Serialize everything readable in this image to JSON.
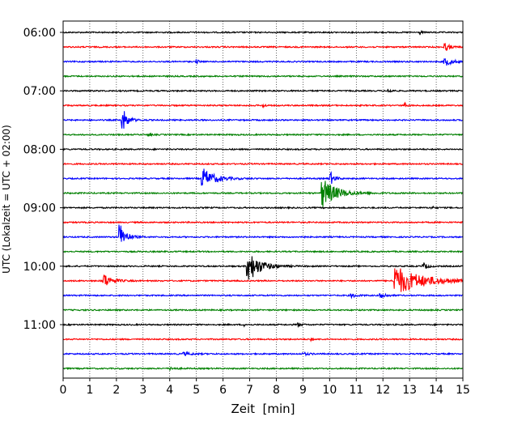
{
  "chart_data": {
    "type": "line",
    "title": "",
    "xlabel": "Zeit  [min]",
    "ylabel": "UTC (Lokalzeit = UTC + 02:00)",
    "xlim": [
      0,
      15
    ],
    "x_ticks": [
      "0",
      "1",
      "2",
      "3",
      "4",
      "5",
      "6",
      "7",
      "8",
      "9",
      "10",
      "11",
      "12",
      "13",
      "14",
      "15"
    ],
    "y_tick_labels": [
      "06:00",
      "07:00",
      "08:00",
      "09:00",
      "10:00",
      "11:00"
    ],
    "grid": "vertical dotted lines at each minute",
    "trace_interval_minutes": 15,
    "trace_colors": [
      "#000000",
      "#ff0000",
      "#0000ff",
      "#008000"
    ],
    "series": [
      {
        "start": "06:00",
        "color": "#000000",
        "events": [
          {
            "t": 13.4,
            "amp": 4,
            "dur": 0.1
          }
        ]
      },
      {
        "start": "06:15",
        "color": "#ff0000",
        "events": [
          {
            "t": 14.3,
            "amp": 5,
            "dur": 0.5
          }
        ]
      },
      {
        "start": "06:30",
        "color": "#0000ff",
        "events": [
          {
            "t": 5.0,
            "amp": 3,
            "dur": 0.2
          },
          {
            "t": 14.3,
            "amp": 6,
            "dur": 0.7
          }
        ]
      },
      {
        "start": "06:45",
        "color": "#008000",
        "events": []
      },
      {
        "start": "07:00",
        "color": "#000000",
        "events": [
          {
            "t": 12.2,
            "amp": 3,
            "dur": 0.3
          }
        ]
      },
      {
        "start": "07:15",
        "color": "#ff0000",
        "events": [
          {
            "t": 7.5,
            "amp": 3,
            "dur": 0.2
          },
          {
            "t": 12.8,
            "amp": 4,
            "dur": 0.2
          }
        ]
      },
      {
        "start": "07:30",
        "color": "#0000ff",
        "events": [
          {
            "t": 2.2,
            "amp": 18,
            "dur": 0.5
          }
        ]
      },
      {
        "start": "07:45",
        "color": "#008000",
        "events": [
          {
            "t": 3.2,
            "amp": 3,
            "dur": 0.2
          }
        ]
      },
      {
        "start": "08:00",
        "color": "#000000",
        "events": []
      },
      {
        "start": "08:15",
        "color": "#ff0000",
        "events": []
      },
      {
        "start": "08:30",
        "color": "#0000ff",
        "events": [
          {
            "t": 5.2,
            "amp": 14,
            "dur": 1.2
          },
          {
            "t": 10.0,
            "amp": 10,
            "dur": 0.4
          }
        ]
      },
      {
        "start": "08:45",
        "color": "#008000",
        "events": [
          {
            "t": 9.7,
            "amp": 20,
            "dur": 1.4
          }
        ]
      },
      {
        "start": "09:00",
        "color": "#000000",
        "events": [
          {
            "t": 13.8,
            "amp": 3,
            "dur": 0.2
          }
        ]
      },
      {
        "start": "09:15",
        "color": "#ff0000",
        "events": []
      },
      {
        "start": "09:30",
        "color": "#0000ff",
        "events": [
          {
            "t": 2.1,
            "amp": 20,
            "dur": 0.6
          },
          {
            "t": 8.9,
            "amp": 3,
            "dur": 0.2
          }
        ]
      },
      {
        "start": "09:45",
        "color": "#008000",
        "events": []
      },
      {
        "start": "10:00",
        "color": "#000000",
        "events": [
          {
            "t": 6.9,
            "amp": 22,
            "dur": 1.2
          },
          {
            "t": 13.5,
            "amp": 5,
            "dur": 0.4
          }
        ]
      },
      {
        "start": "10:15",
        "color": "#ff0000",
        "events": [
          {
            "t": 1.5,
            "amp": 10,
            "dur": 0.8
          },
          {
            "t": 12.4,
            "amp": 20,
            "dur": 2.6
          }
        ]
      },
      {
        "start": "10:30",
        "color": "#0000ff",
        "events": [
          {
            "t": 10.8,
            "amp": 3,
            "dur": 0.5
          },
          {
            "t": 11.9,
            "amp": 7,
            "dur": 0.4
          }
        ]
      },
      {
        "start": "10:45",
        "color": "#008000",
        "events": []
      },
      {
        "start": "11:00",
        "color": "#000000",
        "events": [
          {
            "t": 6.8,
            "amp": 4,
            "dur": 0.1
          },
          {
            "t": 8.8,
            "amp": 3,
            "dur": 0.3
          }
        ]
      },
      {
        "start": "11:15",
        "color": "#ff0000",
        "events": [
          {
            "t": 9.3,
            "amp": 5,
            "dur": 0.1
          }
        ]
      },
      {
        "start": "11:30",
        "color": "#0000ff",
        "events": [
          {
            "t": 4.5,
            "amp": 2,
            "dur": 0.8
          },
          {
            "t": 9.0,
            "amp": 2,
            "dur": 0.5
          }
        ]
      },
      {
        "start": "11:45",
        "color": "#008000",
        "events": [
          {
            "t": 4.0,
            "amp": 2,
            "dur": 0.5
          }
        ]
      }
    ]
  }
}
